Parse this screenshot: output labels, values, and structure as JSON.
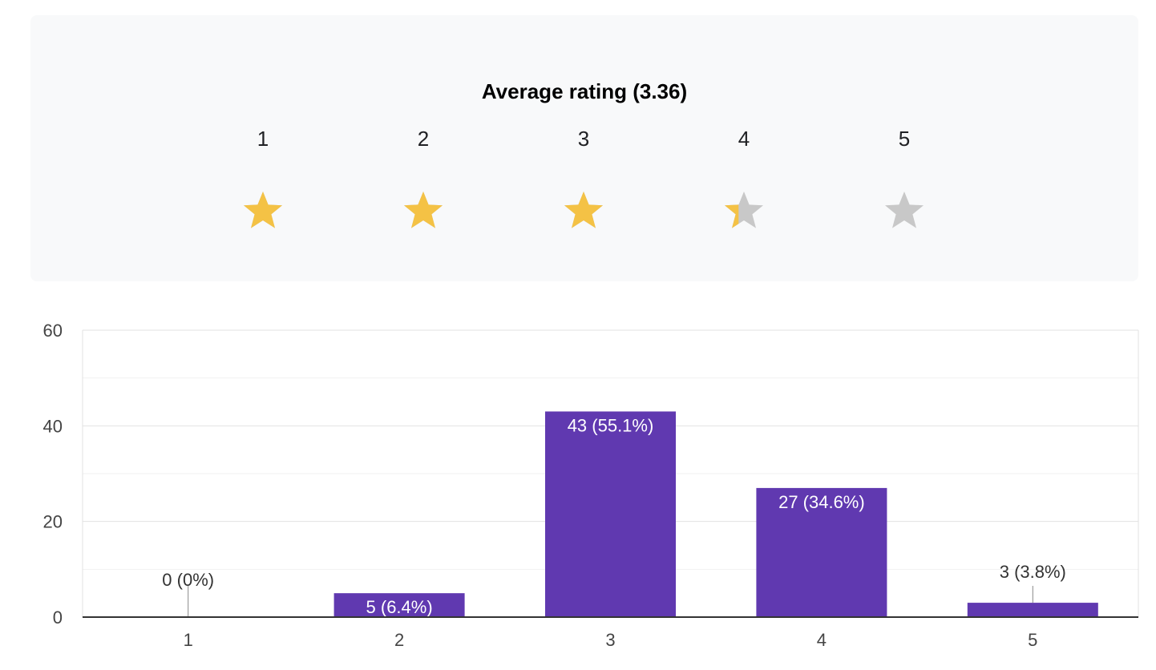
{
  "rating": {
    "title": "Average rating (3.36)",
    "average": 3.36,
    "max": 5,
    "labels": [
      "1",
      "2",
      "3",
      "4",
      "5"
    ],
    "colors": {
      "filled": "#f4c245",
      "empty": "#c8c8c8",
      "panel": "#f8f9fa"
    }
  },
  "chart_data": {
    "type": "bar",
    "categories": [
      "1",
      "2",
      "3",
      "4",
      "5"
    ],
    "values": [
      0,
      5,
      43,
      27,
      3
    ],
    "data_labels": [
      "0 (0%)",
      "5 (6.4%)",
      "43 (55.1%)",
      "27 (34.6%)",
      "3 (3.8%)"
    ],
    "ylim": [
      0,
      60
    ],
    "yticks": [
      0,
      20,
      40,
      60
    ],
    "minor_gridlines": [
      10,
      30,
      50
    ],
    "grid": true,
    "bar_color": "#6039b0",
    "title": "",
    "xlabel": "",
    "ylabel": ""
  }
}
